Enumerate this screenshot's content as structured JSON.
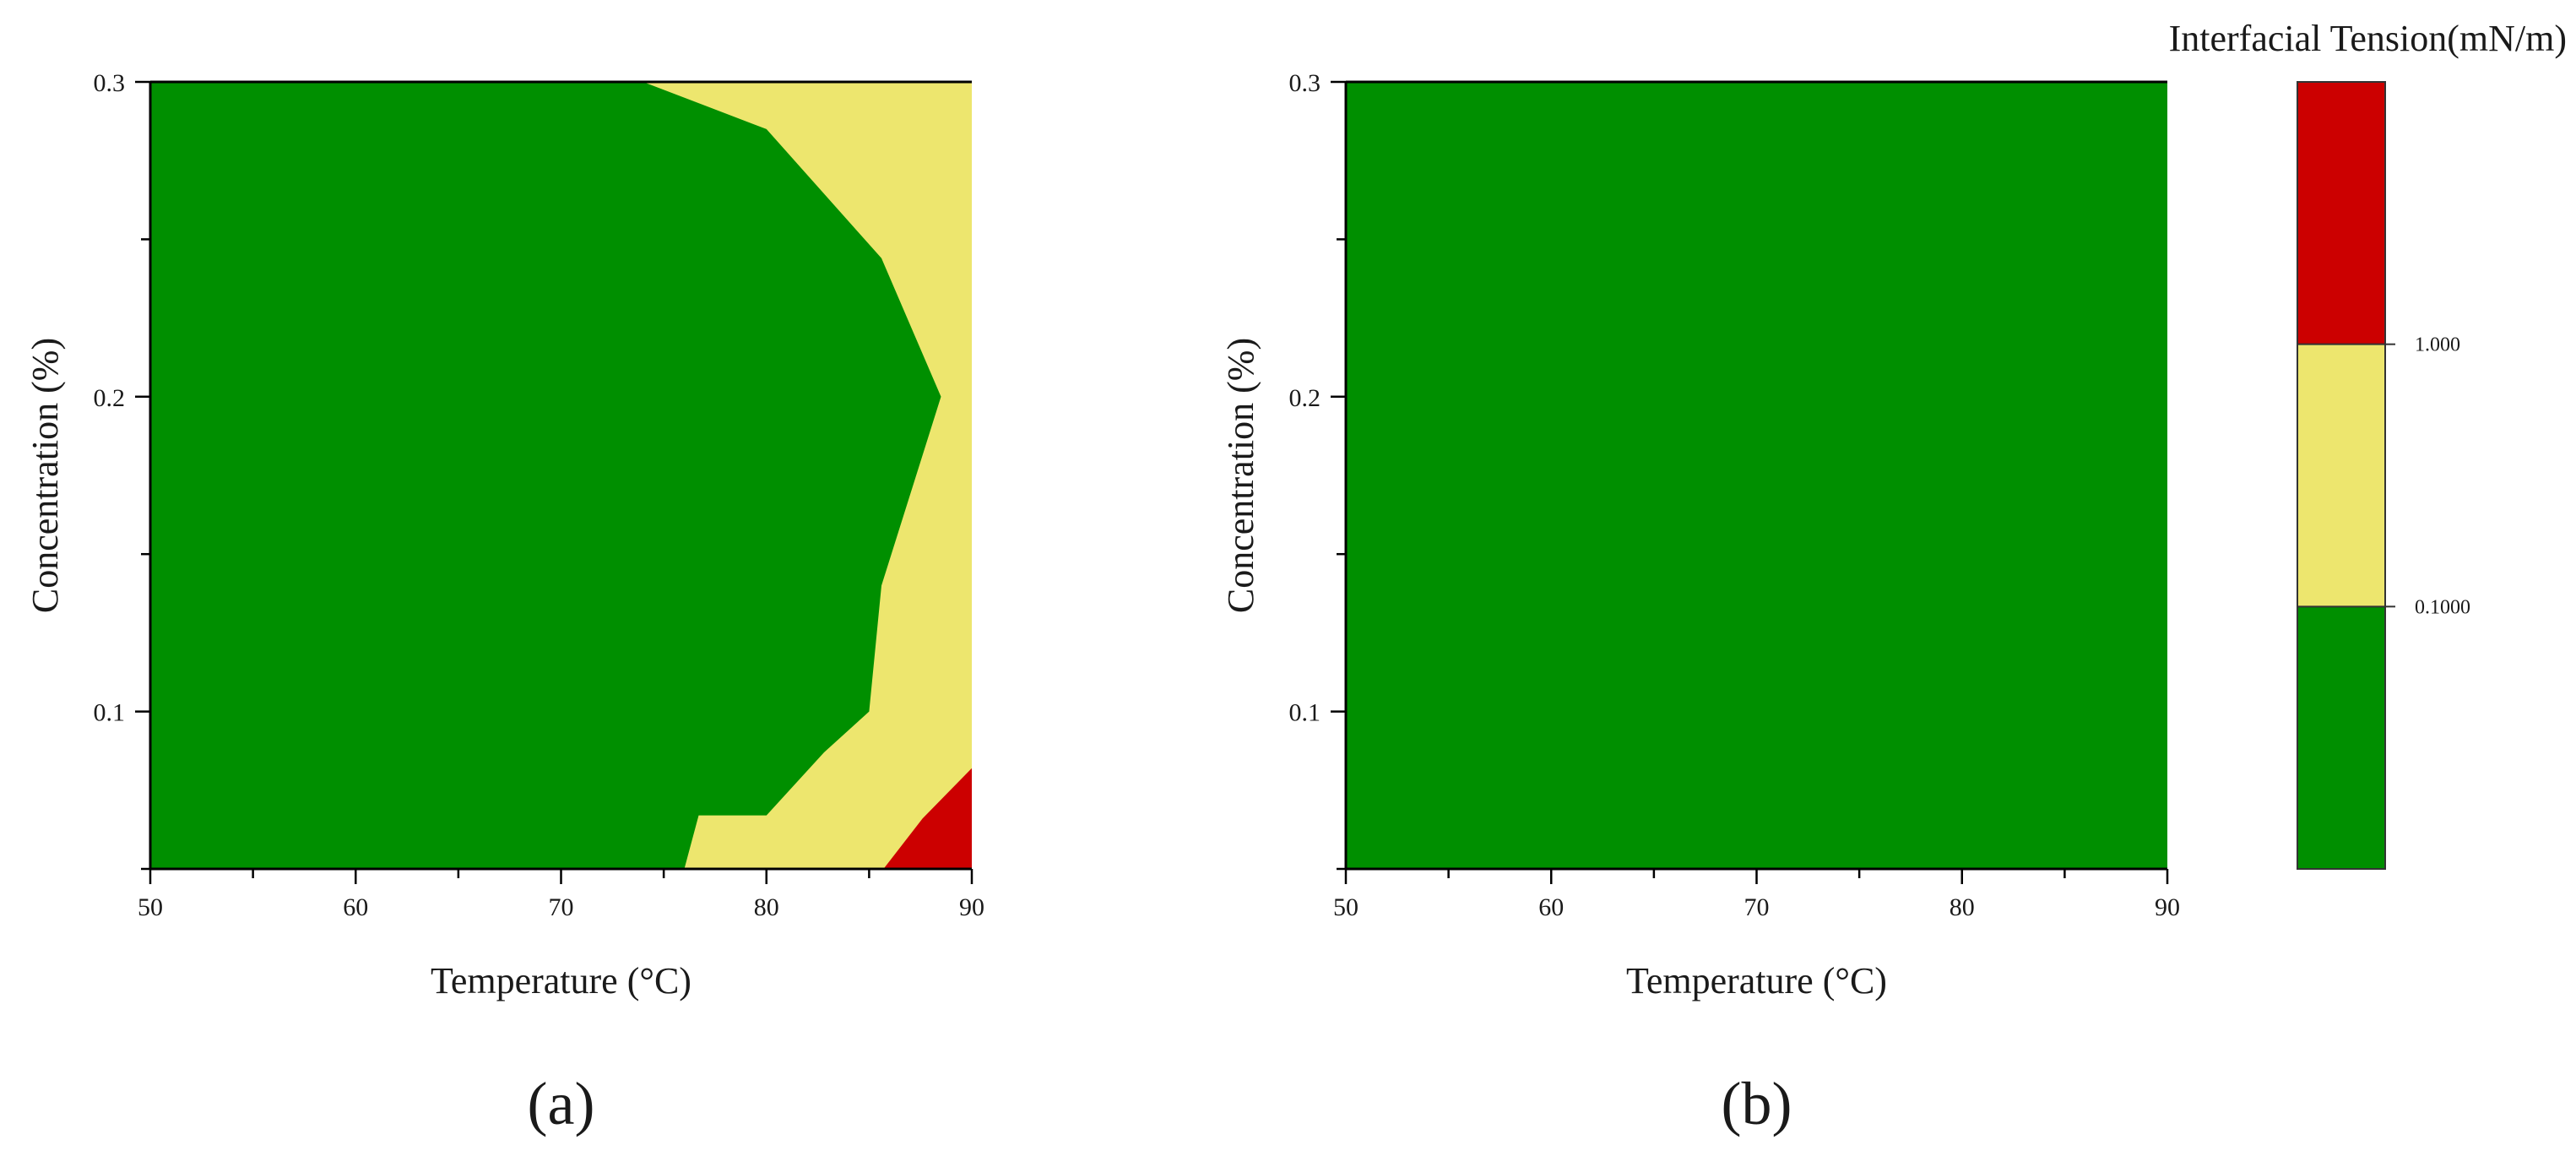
{
  "chart_data": [
    {
      "type": "contour",
      "panel_label": "(a)",
      "xlabel": "Temperature (°C)",
      "ylabel": "Concentration (%)",
      "xlim": [
        50,
        90
      ],
      "ylim": [
        0.05,
        0.3
      ],
      "xticks": [
        50,
        60,
        70,
        80,
        90
      ],
      "xtick_labels": [
        "50",
        "60",
        "70",
        "80",
        "90"
      ],
      "yticks": [
        0.1,
        0.2,
        0.3
      ],
      "ytick_labels": [
        "0.1",
        "0.2",
        "0.3"
      ],
      "grid": false,
      "regions": [
        {
          "level": "< 0.1000",
          "color": "#008f00",
          "polygon": [
            [
              50,
              0.05
            ],
            [
              90,
              0.05
            ],
            [
              90,
              0.3
            ],
            [
              50,
              0.3
            ]
          ]
        },
        {
          "level": "0.1000 – 1.000",
          "color": "#ede66e",
          "polygon": [
            [
              74,
              0.3
            ],
            [
              90,
              0.3
            ],
            [
              90,
              0.05
            ],
            [
              76,
              0.05
            ],
            [
              76.7,
              0.067
            ],
            [
              80,
              0.067
            ],
            [
              82.8,
              0.087
            ],
            [
              85,
              0.1
            ],
            [
              85.6,
              0.14
            ],
            [
              88.5,
              0.2
            ],
            [
              85.6,
              0.244
            ],
            [
              80,
              0.285
            ]
          ]
        },
        {
          "level": "> 1.000",
          "color": "#cc0000",
          "polygon": [
            [
              85.7,
              0.05
            ],
            [
              90,
              0.05
            ],
            [
              90,
              0.082
            ],
            [
              87.6,
              0.066
            ]
          ]
        }
      ]
    },
    {
      "type": "contour",
      "panel_label": "(b)",
      "xlabel": "Temperature (°C)",
      "ylabel": "Concentration (%)",
      "xlim": [
        50,
        90
      ],
      "ylim": [
        0.05,
        0.3
      ],
      "xticks": [
        50,
        60,
        70,
        80,
        90
      ],
      "xtick_labels": [
        "50",
        "60",
        "70",
        "80",
        "90"
      ],
      "yticks": [
        0.1,
        0.2,
        0.3
      ],
      "ytick_labels": [
        "0.1",
        "0.2",
        "0.3"
      ],
      "grid": false,
      "regions": [
        {
          "level": "< 0.1000",
          "color": "#008f00",
          "polygon": [
            [
              50,
              0.05
            ],
            [
              90,
              0.05
            ],
            [
              90,
              0.3
            ],
            [
              50,
              0.3
            ]
          ]
        }
      ]
    }
  ],
  "colorbar": {
    "title": "Interfacial Tension(mN/m)",
    "placement": "right",
    "levels": [
      {
        "color": "#cc0000",
        "label": ""
      },
      {
        "color": "#ede66e",
        "label": "1.000"
      },
      {
        "color": "#008f00",
        "label": "0.1000"
      }
    ]
  }
}
